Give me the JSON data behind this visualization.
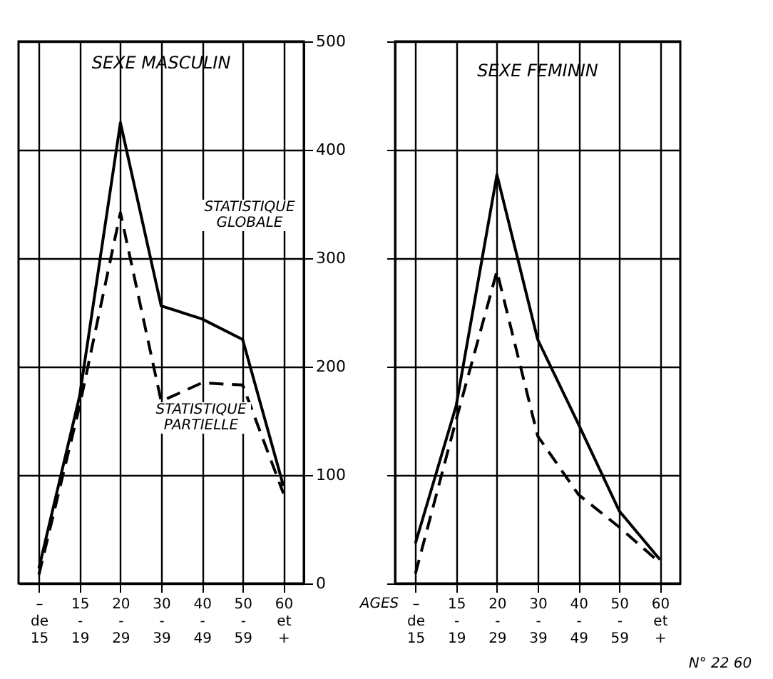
{
  "chart_data": [
    {
      "type": "line",
      "title": "SEXE MASCULIN",
      "categories": [
        "– de 15",
        "15 - 19",
        "20 - 29",
        "30 - 39",
        "40 - 49",
        "50 - 59",
        "60 et +"
      ],
      "series": [
        {
          "color": "#000000",
          "line_style": "solid",
          "values": [
            14,
            173,
            425,
            256,
            244,
            225,
            90
          ]
        },
        {
          "color": "#000000",
          "line_style": "dashed",
          "values": [
            8,
            164,
            342,
            168,
            185,
            183,
            83
          ]
        }
      ],
      "ylim": [
        0,
        500
      ],
      "yticks": [
        0,
        100,
        200,
        300,
        400,
        500
      ],
      "grid": true,
      "annotations": [
        "STATISTIQUE GLOBALE",
        "STATISTIQUE PARTIELLE"
      ]
    },
    {
      "type": "line",
      "title": "SEXE FEMININ",
      "categories": [
        "– de 15",
        "15 - 19",
        "20 - 29",
        "30 - 39",
        "40 - 49",
        "50 - 59",
        "60 et +"
      ],
      "series": [
        {
          "color": "#000000",
          "line_style": "solid",
          "values": [
            37,
            164,
            377,
            225,
            147,
            67,
            22
          ]
        },
        {
          "color": "#000000",
          "line_style": "dashed",
          "values": [
            9,
            151,
            288,
            136,
            82,
            52,
            19
          ]
        }
      ],
      "ylim": [
        0,
        500
      ],
      "yticks": [
        0,
        100,
        200,
        300,
        400,
        500
      ],
      "grid": true,
      "tick_labels": "x",
      "annotations": [
        "AGES",
        "N° 22 60"
      ]
    }
  ]
}
